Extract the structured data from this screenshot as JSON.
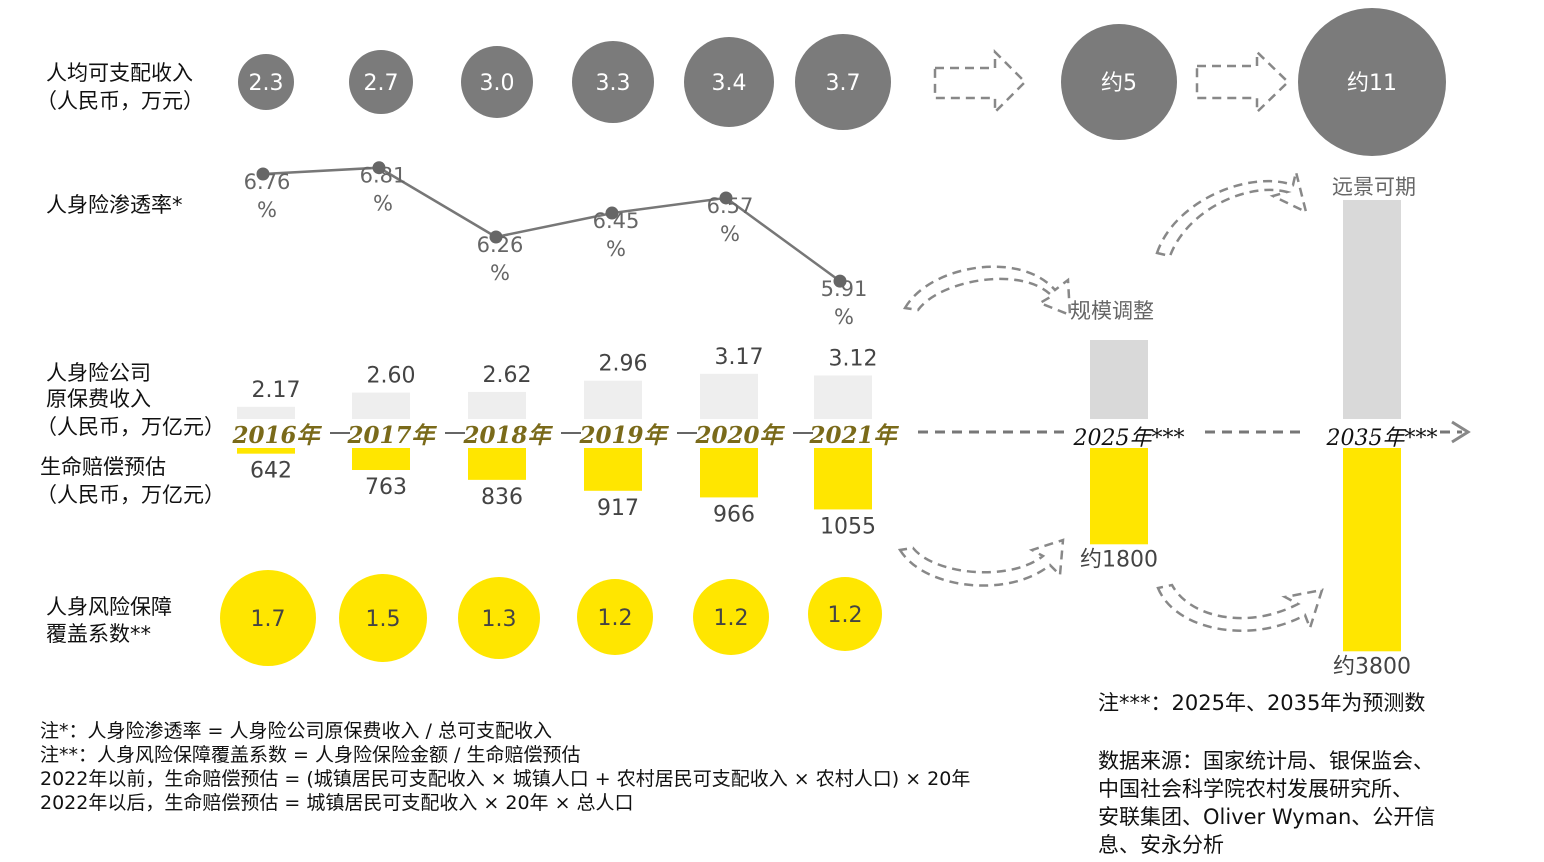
{
  "labels": {
    "income_line1": "人均可支配收入",
    "income_line2": "（人民币，万元）",
    "penetration": "人身险渗透率*",
    "premium_line1": "人身险公司",
    "premium_line2": "原保费收入",
    "premium_line3": "（人民币，万亿元）",
    "life_line1": "生命赔偿预估",
    "life_line2": "（人民币，万亿元）",
    "coverage_line1": "人身风险保障",
    "coverage_line2": "覆盖系数**",
    "scale_adjust": "规模调整",
    "vision": "远景可期"
  },
  "chart_data": {
    "type": "infographic",
    "years": [
      "2016年",
      "2017年",
      "2018年",
      "2019年",
      "2020年",
      "2021年"
    ],
    "forecast_years": [
      "2025年***",
      "2035年***"
    ],
    "income": [
      "2.3",
      "2.7",
      "3.0",
      "3.3",
      "3.4",
      "3.7"
    ],
    "income_forecast": [
      "约5",
      "约11"
    ],
    "penetration": {
      "values": [
        6.76,
        6.81,
        6.26,
        6.45,
        6.57,
        5.91
      ],
      "labels": [
        "6.76",
        "6.81",
        "6.26",
        "6.45",
        "6.57",
        "5.91"
      ],
      "unit": "%"
    },
    "premium": {
      "values": [
        2.17,
        2.6,
        2.62,
        2.96,
        3.17,
        3.12
      ],
      "labels": [
        "2.17",
        "2.60",
        "2.62",
        "2.96",
        "3.17",
        "3.12"
      ]
    },
    "life_compensation": {
      "values": [
        642,
        763,
        836,
        917,
        966,
        1055
      ],
      "labels": [
        "642",
        "763",
        "836",
        "917",
        "966",
        "1055"
      ]
    },
    "life_forecast": {
      "values": [
        1800,
        3800
      ],
      "labels": [
        "约1800",
        "约3800"
      ]
    },
    "coverage": {
      "values": [
        1.7,
        1.5,
        1.3,
        1.2,
        1.2,
        1.2
      ],
      "labels": [
        "1.7",
        "1.5",
        "1.3",
        "1.2",
        "1.2",
        "1.2"
      ]
    },
    "colors": {
      "gray_bubble": "#7b7b7b",
      "yellow": "#ffe600",
      "light_bar": "#eeeeee",
      "forecast_bar": "#d9d9d9"
    }
  },
  "notes": {
    "left": [
      "注*：人身险渗透率 = 人身险公司原保费收入 / 总可支配收入",
      "注**：人身风险保障覆盖系数 = 人身险保险金额 / 生命赔偿预估",
      "2022年以前，生命赔偿预估 = (城镇居民可支配收入 × 城镇人口 + 农村居民可支配收入 × 农村人口) × 20年",
      "2022年以后，生命赔偿预估 = 城镇居民可支配收入 × 20年 × 总人口"
    ],
    "forecast_note": "注***：2025年、2035年为预测数",
    "source": [
      "数据来源：国家统计局、银保监会、",
      "中国社会科学院农村发展研究所、",
      "安联集团、Oliver Wyman、公开信",
      "息、安永分析"
    ]
  }
}
